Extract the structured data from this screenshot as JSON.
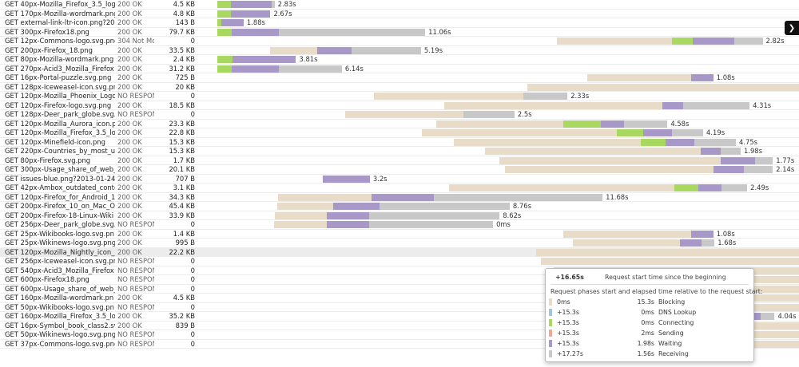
{
  "colors": {
    "blocking": "#e8dcc8",
    "dns": "#9cc8dc",
    "connecting": "#a8d860",
    "sending": "#f0a890",
    "waiting": "#a898c8",
    "receiving": "#c8c8c8",
    "selected_row": "#ececec"
  },
  "panel": {
    "expand_icon": "chevron-right-icon",
    "expand_glyph": "❯"
  },
  "requests": [
    {
      "url": "GET 40px-Mozilla_Firefox_3.5_logo",
      "status": "200 OK",
      "size": "4.5 KB",
      "elapsed": "2.83s",
      "bars": [
        {
          "p": "connecting",
          "s": 2.3,
          "e": 4.6
        },
        {
          "p": "waiting",
          "s": 4.6,
          "e": 11.4
        },
        {
          "p": "receiving",
          "s": 11.4,
          "e": 11.9
        }
      ]
    },
    {
      "url": "GET 170px-Mozilla-wordmark.png",
      "status": "200 OK",
      "size": "4.8 KB",
      "elapsed": "2.67s",
      "bars": [
        {
          "p": "connecting",
          "s": 2.3,
          "e": 4.6
        },
        {
          "p": "waiting",
          "s": 4.6,
          "e": 11.2
        }
      ]
    },
    {
      "url": "GET external-link-ltr-icon.png?20",
      "status": "200 OK",
      "size": "143 B",
      "elapsed": "1.88s",
      "bars": [
        {
          "p": "connecting",
          "s": 2.3,
          "e": 2.9
        },
        {
          "p": "waiting",
          "s": 2.9,
          "e": 6.7
        }
      ]
    },
    {
      "url": "GET 300px-Firefox18.png",
      "status": "200 OK",
      "size": "79.7 KB",
      "elapsed": "11.06s",
      "bars": [
        {
          "p": "connecting",
          "s": 2.3,
          "e": 4.7
        },
        {
          "p": "waiting",
          "s": 4.7,
          "e": 12.6
        },
        {
          "p": "receiving",
          "s": 12.6,
          "e": 37.2
        }
      ]
    },
    {
      "url": "GET 12px-Commons-logo.svg.png",
      "status": "304 Not Mo",
      "size": "0",
      "elapsed": "2.82s",
      "bars": [
        {
          "p": "blocking",
          "s": 59.3,
          "e": 78.7
        },
        {
          "p": "connecting",
          "s": 78.7,
          "e": 82.1
        },
        {
          "p": "waiting",
          "s": 82.1,
          "e": 89.1
        },
        {
          "p": "receiving",
          "s": 89.1,
          "e": 93.9
        }
      ]
    },
    {
      "url": "GET 200px-Firefox_18.png",
      "status": "200 OK",
      "size": "33.5 KB",
      "elapsed": "5.19s",
      "bars": [
        {
          "p": "blocking",
          "s": 11.1,
          "e": 19.1
        },
        {
          "p": "waiting",
          "s": 19.1,
          "e": 24.8
        },
        {
          "p": "receiving",
          "s": 24.8,
          "e": 36.5
        }
      ]
    },
    {
      "url": "GET 80px-Mozilla-wordmark.png",
      "status": "200 OK",
      "size": "2.4 KB",
      "elapsed": "3.81s",
      "bars": [
        {
          "p": "connecting",
          "s": 2.3,
          "e": 4.8
        },
        {
          "p": "waiting",
          "s": 4.8,
          "e": 15.5
        }
      ]
    },
    {
      "url": "GET 270px-Acid3_Mozilla_Firefox",
      "status": "200 OK",
      "size": "31.2 KB",
      "elapsed": "6.14s",
      "bars": [
        {
          "p": "connecting",
          "s": 2.3,
          "e": 4.7
        },
        {
          "p": "waiting",
          "s": 4.7,
          "e": 12.6
        },
        {
          "p": "receiving",
          "s": 12.6,
          "e": 23.2
        }
      ]
    },
    {
      "url": "GET 16px-Portal-puzzle.svg.png",
      "status": "200 OK",
      "size": "725 B",
      "elapsed": "1.08s",
      "bars": [
        {
          "p": "blocking",
          "s": 64.4,
          "e": 81.9
        },
        {
          "p": "waiting",
          "s": 81.9,
          "e": 85.6
        }
      ]
    },
    {
      "url": "GET 128px-Iceweasel-icon.svg.pn",
      "status": "200 OK",
      "size": "20 KB",
      "elapsed": "",
      "bars": [
        {
          "p": "blocking",
          "s": 54.4,
          "e": 100
        }
      ]
    },
    {
      "url": "GET 120px-Mozilla_Phoenix_Logo",
      "status": "NO RESPONS",
      "size": "0",
      "elapsed": "2.33s",
      "bars": [
        {
          "p": "blocking",
          "s": 28.6,
          "e": 53.7
        },
        {
          "p": "receiving",
          "s": 53.7,
          "e": 61.1
        }
      ]
    },
    {
      "url": "GET 120px-Firefox-logo.svg.png",
      "status": "200 OK",
      "size": "18.5 KB",
      "elapsed": "4.31s",
      "bars": [
        {
          "p": "blocking",
          "s": 40.4,
          "e": 77.1
        },
        {
          "p": "waiting",
          "s": 77.1,
          "e": 80.6
        },
        {
          "p": "receiving",
          "s": 80.6,
          "e": 91.7
        }
      ]
    },
    {
      "url": "GET 128px-Deer_park_globe.svg.p",
      "status": "NO RESPONS",
      "size": "0",
      "elapsed": "2.5s",
      "bars": [
        {
          "p": "blocking",
          "s": 23.8,
          "e": 43.6
        },
        {
          "p": "receiving",
          "s": 43.6,
          "e": 52.2
        }
      ]
    },
    {
      "url": "GET 120px-Mozilla_Aurora_icon.p",
      "status": "200 OK",
      "size": "23.3 KB",
      "elapsed": "4.58s",
      "bars": [
        {
          "p": "blocking",
          "s": 39.1,
          "e": 60.4
        },
        {
          "p": "connecting",
          "s": 60.4,
          "e": 66.7
        },
        {
          "p": "waiting",
          "s": 66.7,
          "e": 70.6
        },
        {
          "p": "receiving",
          "s": 70.6,
          "e": 77.9
        }
      ]
    },
    {
      "url": "GET 120px-Mozilla_Firefox_3.5_lo",
      "status": "200 OK",
      "size": "22.8 KB",
      "elapsed": "4.19s",
      "bars": [
        {
          "p": "blocking",
          "s": 36.6,
          "e": 69.4
        },
        {
          "p": "connecting",
          "s": 69.4,
          "e": 73.8
        },
        {
          "p": "waiting",
          "s": 73.8,
          "e": 78.7
        },
        {
          "p": "receiving",
          "s": 78.7,
          "e": 83.9
        }
      ]
    },
    {
      "url": "GET 120px-Minefield-icon.png",
      "status": "200 OK",
      "size": "15.3 KB",
      "elapsed": "4.75s",
      "bars": [
        {
          "p": "blocking",
          "s": 42.0,
          "e": 73.4
        },
        {
          "p": "connecting",
          "s": 73.4,
          "e": 77.6
        },
        {
          "p": "waiting",
          "s": 77.6,
          "e": 82.4
        },
        {
          "p": "receiving",
          "s": 82.4,
          "e": 89.4
        }
      ]
    },
    {
      "url": "GET 220px-Countries_by_most_us",
      "status": "200 OK",
      "size": "15.3 KB",
      "elapsed": "1.98s",
      "bars": [
        {
          "p": "blocking",
          "s": 47.2,
          "e": 83.5
        },
        {
          "p": "waiting",
          "s": 83.5,
          "e": 86.8
        },
        {
          "p": "receiving",
          "s": 86.8,
          "e": 90.2
        }
      ]
    },
    {
      "url": "GET 80px-Firefox.svg.png",
      "status": "200 OK",
      "size": "1.7 KB",
      "elapsed": "1.77s",
      "bars": [
        {
          "p": "blocking",
          "s": 49.7,
          "e": 86.8
        },
        {
          "p": "waiting",
          "s": 86.8,
          "e": 92.6
        },
        {
          "p": "receiving",
          "s": 92.6,
          "e": 95.6
        }
      ]
    },
    {
      "url": "GET 300px-Usage_share_of_web_l",
      "status": "200 OK",
      "size": "20.1 KB",
      "elapsed": "2.14s",
      "bars": [
        {
          "p": "blocking",
          "s": 50.6,
          "e": 85.6
        },
        {
          "p": "waiting",
          "s": 85.6,
          "e": 90.7
        },
        {
          "p": "receiving",
          "s": 90.7,
          "e": 95.6
        }
      ]
    },
    {
      "url": "GET issues-blue.png?2013-01-24",
      "status": "200 OK",
      "size": "707 B",
      "elapsed": "3.2s",
      "bars": [
        {
          "p": "waiting",
          "s": 20.0,
          "e": 27.9
        }
      ]
    },
    {
      "url": "GET 42px-Ambox_outdated_conte",
      "status": "200 OK",
      "size": "3.1 KB",
      "elapsed": "2.49s",
      "bars": [
        {
          "p": "blocking",
          "s": 41.2,
          "e": 79.0
        },
        {
          "p": "connecting",
          "s": 79.0,
          "e": 83.1
        },
        {
          "p": "waiting",
          "s": 83.1,
          "e": 87.0
        },
        {
          "p": "receiving",
          "s": 87.0,
          "e": 91.3
        }
      ]
    },
    {
      "url": "GET 120px-Firefox_for_Android_1",
      "status": "200 OK",
      "size": "34.3 KB",
      "elapsed": "11.68s",
      "bars": [
        {
          "p": "blocking",
          "s": 12.5,
          "e": 28.2
        },
        {
          "p": "waiting",
          "s": 28.2,
          "e": 38.7
        },
        {
          "p": "receiving",
          "s": 38.7,
          "e": 67.0
        }
      ]
    },
    {
      "url": "GET 200px-Firefox_10_on_Mac_OS",
      "status": "200 OK",
      "size": "45.4 KB",
      "elapsed": "8.76s",
      "bars": [
        {
          "p": "blocking",
          "s": 12.3,
          "e": 21.7
        },
        {
          "p": "waiting",
          "s": 21.7,
          "e": 29.5
        },
        {
          "p": "receiving",
          "s": 29.5,
          "e": 51.4
        }
      ]
    },
    {
      "url": "GET 200px-Firefox-18-Linux-Wiki",
      "status": "200 OK",
      "size": "33.9 KB",
      "elapsed": "8.62s",
      "bars": [
        {
          "p": "blocking",
          "s": 11.9,
          "e": 20.7
        },
        {
          "p": "waiting",
          "s": 20.7,
          "e": 27.8
        },
        {
          "p": "receiving",
          "s": 27.8,
          "e": 49.7
        }
      ]
    },
    {
      "url": "GET 256px-Deer_park_globe.svg.",
      "status": "NO RESPONS",
      "size": "0",
      "elapsed": "0ms",
      "bars": [
        {
          "p": "blocking",
          "s": 11.8,
          "e": 20.7
        },
        {
          "p": "waiting",
          "s": 20.7,
          "e": 27.8
        },
        {
          "p": "receiving",
          "s": 27.8,
          "e": 48.6
        }
      ]
    },
    {
      "url": "GET 25px-Wikibooks-logo.svg.pn",
      "status": "200 OK",
      "size": "1.4 KB",
      "elapsed": "1.08s",
      "bars": [
        {
          "p": "blocking",
          "s": 60.4,
          "e": 81.9
        },
        {
          "p": "waiting",
          "s": 81.9,
          "e": 85.6
        }
      ]
    },
    {
      "url": "GET 25px-Wikinews-logo.svg.png",
      "status": "200 OK",
      "size": "995 B",
      "elapsed": "1.68s",
      "bars": [
        {
          "p": "blocking",
          "s": 62.0,
          "e": 80.0
        },
        {
          "p": "waiting",
          "s": 80.0,
          "e": 83.6
        },
        {
          "p": "receiving",
          "s": 83.6,
          "e": 85.8
        }
      ]
    },
    {
      "url": "GET 120px-Mozilla_Nightly_icon_2",
      "status": "200 OK",
      "size": "22.2 KB",
      "elapsed": "",
      "bars": [
        {
          "p": "blocking",
          "s": 55.8,
          "e": 100
        }
      ],
      "selected": true
    },
    {
      "url": "GET 256px-Iceweasel-icon.svg.pn",
      "status": "NO RESPONS",
      "size": "0",
      "elapsed": "",
      "bars": [
        {
          "p": "blocking",
          "s": 56.6,
          "e": 100
        }
      ]
    },
    {
      "url": "GET 540px-Acid3_Mozilla_Firefox",
      "status": "NO RESPONS",
      "size": "0",
      "elapsed": "",
      "bars": [
        {
          "p": "blocking",
          "s": 58.8,
          "e": 100
        }
      ]
    },
    {
      "url": "GET 600px-Firefox18.png",
      "status": "NO RESPONS",
      "size": "0",
      "elapsed": "",
      "bars": [
        {
          "p": "blocking",
          "s": 59.2,
          "e": 100
        }
      ]
    },
    {
      "url": "GET 600px-Usage_share_of_web_l",
      "status": "NO RESPONS",
      "size": "0",
      "elapsed": "",
      "bars": [
        {
          "p": "blocking",
          "s": 59.5,
          "e": 100
        }
      ]
    },
    {
      "url": "GET 160px-Mozilla-wordmark.pn",
      "status": "200 OK",
      "size": "4.5 KB",
      "elapsed": "",
      "bars": [
        {
          "p": "blocking",
          "s": 60.3,
          "e": 100
        }
      ]
    },
    {
      "url": "GET 50px-Wikibooks-logo.svg.pn",
      "status": "NO RESPONS",
      "size": "0",
      "elapsed": "",
      "bars": [
        {
          "p": "blocking",
          "s": 60.7,
          "e": 100
        }
      ]
    },
    {
      "url": "GET 160px-Mozilla_Firefox_3.5_lo",
      "status": "200 OK",
      "size": "35.2 KB",
      "elapsed": "4.04s",
      "bars": [
        {
          "p": "blocking",
          "s": 60.9,
          "e": 91.9
        },
        {
          "p": "waiting",
          "s": 91.9,
          "e": 93.5
        },
        {
          "p": "receiving",
          "s": 93.5,
          "e": 95.9
        }
      ]
    },
    {
      "url": "GET 16px-Symbol_book_class2.sv",
      "status": "200 OK",
      "size": "839 B",
      "elapsed": "",
      "bars": [
        {
          "p": "blocking",
          "s": 61.2,
          "e": 100
        }
      ]
    },
    {
      "url": "GET 50px-Wikinews-logo.svg.png",
      "status": "NO RESPONS",
      "size": "0",
      "elapsed": "",
      "bars": [
        {
          "p": "blocking",
          "s": 61.6,
          "e": 100
        }
      ]
    },
    {
      "url": "GET 37px-Commons-logo.svg.png",
      "status": "NO RESPONS",
      "size": "0",
      "elapsed": "",
      "bars": [
        {
          "p": "blocking",
          "s": 62.0,
          "e": 100
        }
      ]
    }
  ],
  "tooltip": {
    "start_time": "+16.65s",
    "start_desc": "Request start time since the beginning",
    "phases_desc": "Request phases start and elapsed time relative to the request start:",
    "phases": [
      {
        "key": "blocking",
        "start": "0ms",
        "elapsed": "15.3s",
        "name": "Blocking"
      },
      {
        "key": "dns",
        "start": "+15.3s",
        "elapsed": "0ms",
        "name": "DNS Lookup"
      },
      {
        "key": "connecting",
        "start": "+15.3s",
        "elapsed": "0ms",
        "name": "Connecting"
      },
      {
        "key": "sending",
        "start": "+15.3s",
        "elapsed": "2ms",
        "name": "Sending"
      },
      {
        "key": "waiting",
        "start": "+15.3s",
        "elapsed": "1.98s",
        "name": "Waiting"
      },
      {
        "key": "receiving",
        "start": "+17.27s",
        "elapsed": "1.56s",
        "name": "Receiving"
      }
    ]
  }
}
